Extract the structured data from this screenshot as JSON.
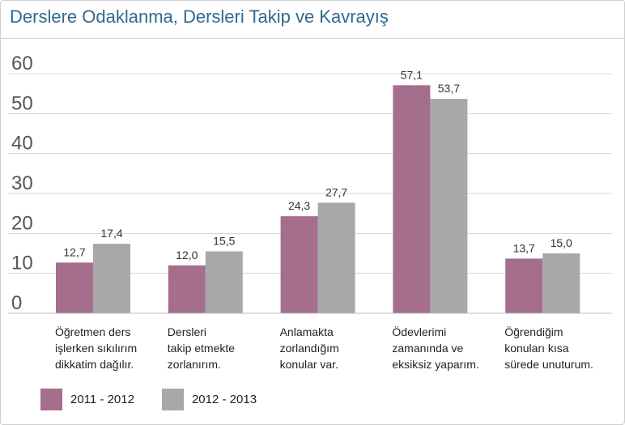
{
  "title": "Derslere Odaklanma, Dersleri Takip ve Kavrayış",
  "colors": {
    "series_0": "#a56e8d",
    "series_1": "#a8a8a8",
    "title": "#2e6a8f",
    "grid": "#d4d4d4",
    "axis_text": "#555555"
  },
  "chart_data": {
    "type": "bar",
    "title": "Derslere Odaklanma, Dersleri Takip ve Kavrayış",
    "categories": [
      "Öğretmen ders işlerken sıkılırım dikkatim dağılır.",
      "Dersleri takip etmekte zorlanırım.",
      "Anlamakta zorlandığım konular var.",
      "Ödevlerimi zamanında ve eksiksiz yaparım.",
      "Öğrendiğim konuları kısa sürede unuturum."
    ],
    "category_lines": [
      [
        "Öğretmen ders",
        "işlerken sıkılırım",
        "dikkatim dağılır."
      ],
      [
        "Dersleri",
        "takip etmekte",
        "zorlanırım."
      ],
      [
        "Anlamakta",
        "zorlandığım",
        "konular var."
      ],
      [
        "Ödevlerimi",
        "zamanında ve",
        "eksiksiz yaparım."
      ],
      [
        "Öğrendiğim",
        "konuları kısa",
        "sürede unuturum."
      ]
    ],
    "series": [
      {
        "name": "2011 - 2012",
        "values": [
          12.7,
          12.0,
          24.3,
          57.1,
          13.7
        ],
        "labels": [
          "12,7",
          "12,0",
          "24,3",
          "57,1",
          "13,7"
        ]
      },
      {
        "name": "2012 - 2013",
        "values": [
          17.4,
          15.5,
          27.7,
          53.7,
          15.0
        ],
        "labels": [
          "17,4",
          "15,5",
          "27,7",
          "53,7",
          "15,0"
        ]
      }
    ],
    "yticks": [
      "0",
      "10",
      "20",
      "30",
      "40",
      "50",
      "60"
    ],
    "ylim": [
      0,
      60
    ],
    "grid": true,
    "legend_position": "bottom-left",
    "xlabel": "",
    "ylabel": ""
  }
}
